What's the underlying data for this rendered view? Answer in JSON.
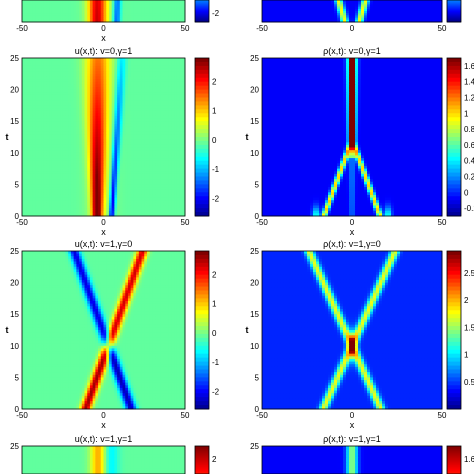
{
  "chart_data": [
    {
      "type": "heatmap",
      "title": "",
      "xlabel": "x",
      "ylabel": "",
      "xticks": [
        "-50",
        "0",
        "50"
      ],
      "yticks": [],
      "colorbar_ticks": [
        "-2"
      ],
      "colormap": "jet",
      "pattern": "kink"
    },
    {
      "type": "heatmap",
      "title": "",
      "xlabel": "",
      "ylabel": "",
      "xticks": [
        "-50",
        "0",
        "50"
      ],
      "yticks": [],
      "colorbar_ticks": [],
      "colormap": "jet",
      "pattern": "cross_density"
    },
    {
      "type": "heatmap",
      "title": "u(x,t): v=0,γ=1",
      "xlabel": "x",
      "ylabel": "t",
      "xlim": [
        -50,
        50
      ],
      "ylim": [
        0,
        25
      ],
      "xticks": [
        "-50",
        "0",
        "50"
      ],
      "yticks": [
        "0",
        "5",
        "10",
        "15",
        "20",
        "25"
      ],
      "colorbar_ticks": [
        "2",
        "1",
        "0",
        "-1",
        "-2"
      ],
      "clim": [
        -2.6,
        2.8
      ],
      "colormap": "jet",
      "pattern": "kink_static"
    },
    {
      "type": "heatmap",
      "title": "ρ(x,t): v=0,γ=1",
      "xlabel": "x",
      "ylabel": "t",
      "xlim": [
        -50,
        50
      ],
      "ylim": [
        0,
        25
      ],
      "xticks": [
        "-50",
        "0",
        "50"
      ],
      "yticks": [
        "0",
        "5",
        "10",
        "15",
        "20",
        "25"
      ],
      "colorbar_ticks": [
        "1.6",
        "1.4",
        "1.2",
        "1",
        "0.8",
        "0.6",
        "0.4",
        "0.2",
        "0",
        "-0.2"
      ],
      "clim": [
        -0.3,
        1.7
      ],
      "colormap": "jet",
      "pattern": "density_static"
    },
    {
      "type": "heatmap",
      "title": "u(x,t): v=1,γ=0",
      "xlabel": "x",
      "ylabel": "t",
      "xlim": [
        -50,
        50
      ],
      "ylim": [
        0,
        25
      ],
      "xticks": [
        "-50",
        "0",
        "50"
      ],
      "yticks": [
        "0",
        "5",
        "10",
        "15",
        "20",
        "25"
      ],
      "colorbar_ticks": [
        "2",
        "1",
        "0",
        "-1",
        "-2"
      ],
      "clim": [
        -2.6,
        2.8
      ],
      "colormap": "jet",
      "pattern": "kink_moving"
    },
    {
      "type": "heatmap",
      "title": "ρ(x,t): v=1,γ=0",
      "xlabel": "x",
      "ylabel": "t",
      "xlim": [
        -50,
        50
      ],
      "ylim": [
        0,
        25
      ],
      "xticks": [
        "-50",
        "0",
        "50"
      ],
      "yticks": [
        "0",
        "5",
        "10",
        "15",
        "20",
        "25"
      ],
      "colorbar_ticks": [
        "2.5",
        "2",
        "1.5",
        "1",
        "0.5"
      ],
      "clim": [
        0,
        2.9
      ],
      "colormap": "jet",
      "pattern": "density_moving"
    },
    {
      "type": "heatmap",
      "title": "u(x,t): v=1,γ=1",
      "xlabel": "",
      "ylabel": "",
      "xticks": [],
      "yticks": [
        "25"
      ],
      "colorbar_ticks": [
        "2"
      ],
      "colormap": "jet",
      "pattern": "kink_top"
    },
    {
      "type": "heatmap",
      "title": "ρ(x,t): v=1,γ=1",
      "xlabel": "",
      "ylabel": "",
      "xticks": [],
      "yticks": [
        "25"
      ],
      "colorbar_ticks": [
        "1.6"
      ],
      "colormap": "jet",
      "pattern": "density_top"
    }
  ]
}
